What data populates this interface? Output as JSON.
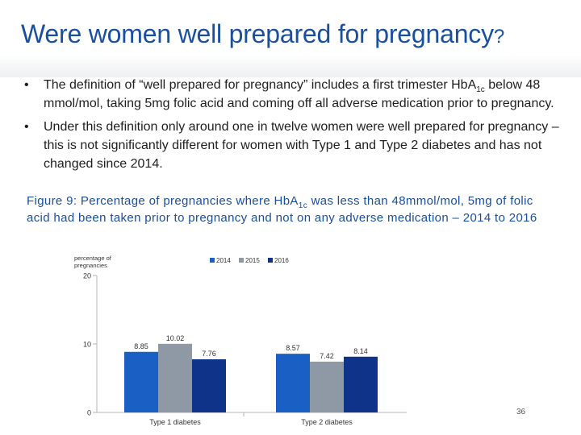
{
  "slide": {
    "title_main": "Were women well prepared for pregnancy",
    "title_mark": "?",
    "bullet_symbol": "•",
    "bullets": [
      {
        "pre": "The definition of “well prepared for pregnancy” includes a first trimester HbA",
        "sub": "1c",
        "post": " below 48 mmol/mol, taking 5mg folic acid and coming off all adverse medication prior to pregnancy."
      },
      {
        "text": "Under this definition only around one in twelve women were well prepared for pregnancy – this is not significantly different for women with Type 1 and Type 2 diabetes and has not changed since 2014."
      }
    ],
    "caption": {
      "pre": "Figure 9: Percentage of pregnancies where HbA",
      "sub": "1c",
      "post": " was less than 48mmol/mol, 5mg of folic acid had been taken prior to pregnancy and not on any adverse medication – 2014 to 2016"
    },
    "page_number": "36"
  },
  "chart_data": {
    "type": "bar",
    "ylabel": "percentage of pregnancies",
    "ylim": [
      0,
      20
    ],
    "yticks": [
      0,
      10,
      20
    ],
    "categories": [
      "Type 1 diabetes",
      "Type 2 diabetes"
    ],
    "series": [
      {
        "name": "2014",
        "values": [
          8.85,
          8.57
        ],
        "color": "#1a5fc4"
      },
      {
        "name": "2015",
        "values": [
          10.02,
          7.42
        ],
        "color": "#8f99a6"
      },
      {
        "name": "2016",
        "values": [
          7.76,
          8.14
        ],
        "color": "#0e3389"
      }
    ],
    "legend_position": "top",
    "grid": false
  }
}
